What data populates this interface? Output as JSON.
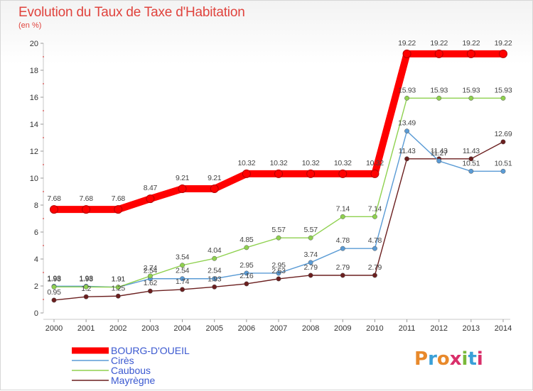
{
  "header": {
    "title": "Evolution du Taux de Taxe d'Habitation",
    "unit": "(en %)"
  },
  "logo": {
    "text": "Proxiti",
    "colors": [
      "#e8892b",
      "#3aa0d8",
      "#e8892b",
      "#d92f6a",
      "#7ab83a",
      "#3aa0d8",
      "#d92f6a"
    ]
  },
  "chart_data": {
    "type": "line",
    "title": "Evolution du Taux de Taxe d'Habitation",
    "ylabel": "(en %)",
    "xlabel": "",
    "x": [
      "2000",
      "2001",
      "2002",
      "2003",
      "2004",
      "2005",
      "2006",
      "2007",
      "2008",
      "2009",
      "2010",
      "2011",
      "2012",
      "2013",
      "2014"
    ],
    "ylim": [
      0,
      20
    ],
    "yticks": [
      "0",
      "2",
      "4",
      "6",
      "8",
      "10",
      "12",
      "14",
      "16",
      "18",
      "20"
    ],
    "grid": false,
    "legend_position": "bottom-left",
    "series": [
      {
        "name": "BOURG-D'OUEIL",
        "color": "#ff0000",
        "emphasis": true,
        "values": [
          7.68,
          7.68,
          7.68,
          8.47,
          9.21,
          9.21,
          10.32,
          10.32,
          10.32,
          10.32,
          10.32,
          19.22,
          19.22,
          19.22,
          19.22
        ],
        "labels": [
          "7.68",
          "7.68",
          "7.68",
          "8.47",
          "9.21",
          "9.21",
          "10.32",
          "10.32",
          "10.32",
          "10.32",
          "10.32",
          "19.22",
          "19.22",
          "19.22",
          "19.22"
        ]
      },
      {
        "name": "Cirès",
        "color": "#5a9bd5",
        "values": [
          1.98,
          1.98,
          1.91,
          2.54,
          2.54,
          2.54,
          2.95,
          2.95,
          3.74,
          4.78,
          4.78,
          13.49,
          11.27,
          10.51,
          10.51
        ],
        "labels": [
          "1.98",
          "1.98",
          "1.91",
          "2.54",
          "2.54",
          "2.54",
          "2.95",
          "2.95",
          "3.74",
          "4.78",
          "4.78",
          "13.49",
          "11.27",
          "10.51",
          "10.51"
        ]
      },
      {
        "name": "Caubous",
        "color": "#8fd14f",
        "values": [
          1.93,
          1.93,
          1.91,
          2.74,
          3.54,
          4.04,
          4.85,
          5.57,
          5.57,
          7.14,
          7.14,
          15.93,
          15.93,
          15.93,
          15.93
        ],
        "labels": [
          "1.93",
          "1.93",
          "1.91",
          "2.74",
          "3.54",
          "4.04",
          "4.85",
          "5.57",
          "5.57",
          "7.14",
          "7.14",
          "15.93",
          "15.93",
          "15.93",
          "15.93"
        ]
      },
      {
        "name": "Mayrègne",
        "color": "#6b1f1f",
        "values": [
          0.95,
          1.2,
          1.25,
          1.62,
          1.74,
          1.93,
          2.16,
          2.53,
          2.79,
          2.79,
          2.79,
          11.43,
          11.43,
          11.43,
          12.69
        ],
        "labels": [
          "0.95",
          "1.2",
          "1.25",
          "1.62",
          "1.74",
          "1.93",
          "2.16",
          "2.53",
          "2.79",
          "2.79",
          "2.79",
          "11.43",
          "11.43",
          "11.43",
          "12.69"
        ]
      }
    ]
  }
}
